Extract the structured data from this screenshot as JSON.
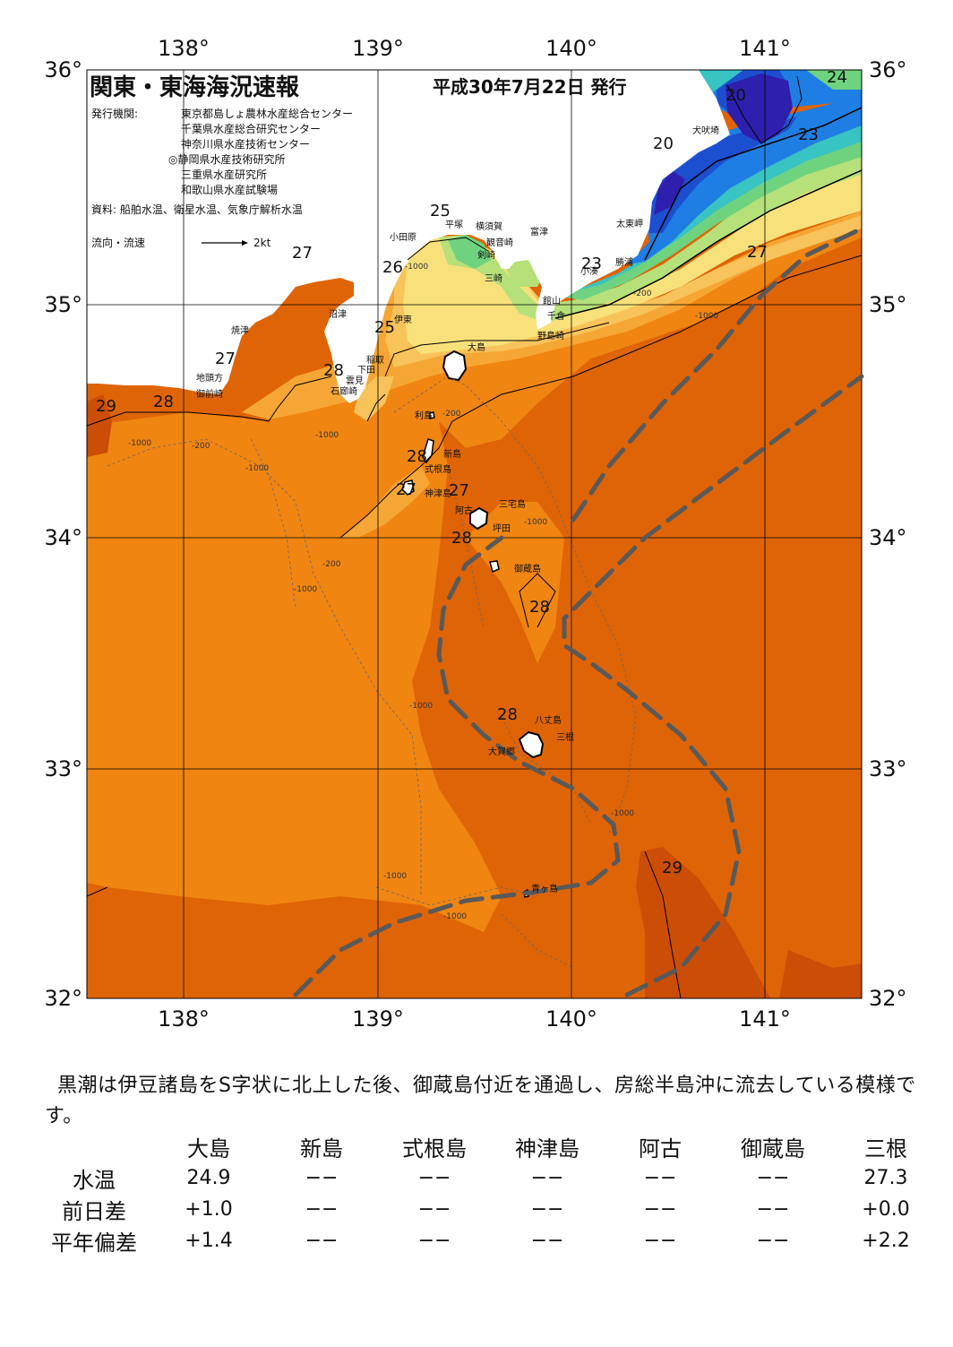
{
  "header": {
    "title": "関東・東海海況速報",
    "issue_date": "平成30年7月22日 発行",
    "issuer_label": "発行機関:",
    "issuers": [
      "東京都島しょ農林水産総合センター",
      "千葉県水産総合研究センター",
      "神奈川県水産技術センター",
      "◎静岡県水産技術研究所",
      "三重県水産研究所",
      "和歌山県水産試験場"
    ],
    "sources": "資料: 船舶水温、衛星水温、気象庁解析水温",
    "current_legend_label": "流向・流速",
    "current_legend_scale": "2kt"
  },
  "axes": {
    "lon_labels": [
      "138°",
      "139°",
      "140°",
      "141°"
    ],
    "lat_labels": [
      "36°",
      "35°",
      "34°",
      "33°",
      "32°"
    ]
  },
  "place_labels": [
    "小田原",
    "平塚",
    "横須賀",
    "観音崎",
    "富津",
    "剣崎",
    "三崎",
    "館山",
    "千倉",
    "野島崎",
    "勝浦",
    "小湊",
    "太東岬",
    "犬吠埼",
    "沼津",
    "焼津",
    "御前崎",
    "地頭方",
    "稲取",
    "下田",
    "雲見",
    "石廊崎",
    "伊東",
    "大島",
    "利島",
    "新島",
    "式根島",
    "神津島",
    "阿古",
    "三宅島",
    "坪田",
    "御蔵島",
    "八丈島",
    "三根",
    "大賀郷",
    "青ヶ島"
  ],
  "isotherm_labels": [
    "24",
    "20",
    "20",
    "23",
    "27",
    "25",
    "26",
    "23",
    "27",
    "25",
    "27",
    "28",
    "29",
    "28",
    "28",
    "27",
    "27",
    "28",
    "28",
    "28",
    "29"
  ],
  "depth_labels": [
    "-1000",
    "-200"
  ],
  "colors": {
    "c29": "#cc4d05",
    "c28": "#df6406",
    "c27": "#f08512",
    "c26": "#f6a634",
    "c25": "#f7c35a",
    "c24": "#f8e17a",
    "c23": "#b5e07a",
    "c22": "#6fd27f",
    "c21": "#38c4c2",
    "c20": "#1f7ee3",
    "c19": "#1b4fd0",
    "c18": "#2e1fae",
    "land": "#ffffff",
    "kuroshio": "#595959"
  },
  "summary_text": "黒潮は伊豆諸島をS字状に北上した後、御蔵島付近を通過し、房総半島沖に流去している模様です。",
  "table": {
    "columns": [
      "大島",
      "新島",
      "式根島",
      "神津島",
      "阿古",
      "御蔵島",
      "三根"
    ],
    "rows": [
      {
        "label": "水温",
        "values": [
          "24.9",
          "−−",
          "−−",
          "−−",
          "−−",
          "−−",
          "27.3"
        ]
      },
      {
        "label": "前日差",
        "values": [
          "+1.0",
          "−−",
          "−−",
          "−−",
          "−−",
          "−−",
          "+0.0"
        ]
      },
      {
        "label": "平年偏差",
        "values": [
          "+1.4",
          "−−",
          "−−",
          "−−",
          "−−",
          "−−",
          "+2.2"
        ]
      }
    ]
  }
}
